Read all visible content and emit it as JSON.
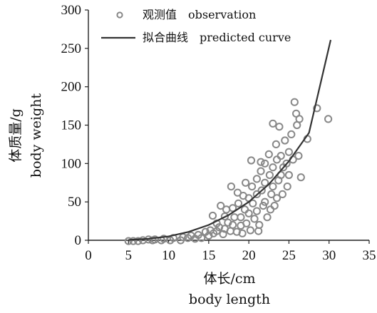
{
  "chart_data": {
    "type": "scatter",
    "xlabel": "体长/cm",
    "xlabel_en": "body length",
    "ylabel": "体质量/g",
    "ylabel_en": "body weight",
    "xlim": [
      0,
      35
    ],
    "ylim": [
      0,
      300
    ],
    "xticks": [
      0,
      5,
      10,
      15,
      20,
      25,
      30,
      35
    ],
    "yticks": [
      0,
      50,
      100,
      150,
      200,
      250,
      300
    ],
    "grid": false,
    "legend_position": "top-left",
    "series": [
      {
        "name": "观测值　observation",
        "kind": "scatter",
        "color": "#888888",
        "marker": "open-circle",
        "points": [
          [
            5.0,
            -1
          ],
          [
            5.6,
            -1
          ],
          [
            6.2,
            -1
          ],
          [
            6.8,
            0
          ],
          [
            7.5,
            1
          ],
          [
            8.0,
            0
          ],
          [
            8.3,
            1
          ],
          [
            9.1,
            0
          ],
          [
            9.4,
            2
          ],
          [
            10.2,
            0
          ],
          [
            10.6,
            3
          ],
          [
            11.5,
            0
          ],
          [
            11.8,
            4
          ],
          [
            12.4,
            3
          ],
          [
            12.8,
            6
          ],
          [
            13.3,
            2
          ],
          [
            13.7,
            7
          ],
          [
            14.1,
            3
          ],
          [
            14.6,
            11
          ],
          [
            15.0,
            6
          ],
          [
            15.2,
            13
          ],
          [
            15.6,
            9
          ],
          [
            16.0,
            22
          ],
          [
            16.0,
            12
          ],
          [
            16.3,
            17
          ],
          [
            16.8,
            8
          ],
          [
            17.0,
            31
          ],
          [
            17.0,
            15
          ],
          [
            17.4,
            23
          ],
          [
            17.7,
            12
          ],
          [
            18.0,
            42
          ],
          [
            18.0,
            20
          ],
          [
            18.2,
            30
          ],
          [
            18.5,
            11
          ],
          [
            18.7,
            48
          ],
          [
            19.0,
            30
          ],
          [
            19.0,
            19
          ],
          [
            19.3,
            58
          ],
          [
            19.5,
            40
          ],
          [
            19.7,
            22
          ],
          [
            20.0,
            55
          ],
          [
            20.0,
            35
          ],
          [
            20.2,
            13
          ],
          [
            20.4,
            70
          ],
          [
            20.5,
            48
          ],
          [
            20.7,
            28
          ],
          [
            21.0,
            80
          ],
          [
            21.0,
            60
          ],
          [
            21.0,
            38
          ],
          [
            21.3,
            20
          ],
          [
            21.5,
            90
          ],
          [
            21.6,
            65
          ],
          [
            21.8,
            45
          ],
          [
            22.0,
            100
          ],
          [
            22.0,
            75
          ],
          [
            22.0,
            50
          ],
          [
            22.3,
            30
          ],
          [
            22.5,
            112
          ],
          [
            22.6,
            85
          ],
          [
            22.8,
            60
          ],
          [
            23.0,
            95
          ],
          [
            23.0,
            70
          ],
          [
            23.2,
            45
          ],
          [
            23.4,
            125
          ],
          [
            23.5,
            105
          ],
          [
            23.7,
            78
          ],
          [
            24.0,
            110
          ],
          [
            24.0,
            85
          ],
          [
            24.2,
            60
          ],
          [
            24.5,
            130
          ],
          [
            24.7,
            100
          ],
          [
            25.0,
            115
          ],
          [
            25.0,
            85
          ],
          [
            25.3,
            138
          ],
          [
            25.5,
            105
          ],
          [
            25.7,
            180
          ],
          [
            25.9,
            165
          ],
          [
            26.0,
            150
          ],
          [
            26.2,
            110
          ],
          [
            26.5,
            82
          ],
          [
            26.3,
            158
          ],
          [
            27.3,
            132
          ],
          [
            28.5,
            172
          ],
          [
            29.9,
            158
          ],
          [
            23.0,
            152
          ],
          [
            23.8,
            148
          ],
          [
            24.3,
            95
          ],
          [
            21.5,
            102
          ],
          [
            20.3,
            104
          ],
          [
            19.6,
            75
          ],
          [
            18.6,
            62
          ],
          [
            17.8,
            70
          ],
          [
            16.5,
            45
          ],
          [
            15.5,
            32
          ],
          [
            22.7,
            40
          ],
          [
            23.5,
            55
          ],
          [
            24.8,
            70
          ],
          [
            19.2,
            9
          ],
          [
            21.2,
            12
          ],
          [
            17.2,
            40
          ]
        ]
      },
      {
        "name": "拟合曲线　predicted curve",
        "kind": "line",
        "color": "#333333",
        "x": [
          5,
          7.5,
          10,
          12.5,
          15,
          17.5,
          20,
          22.5,
          25,
          27.5,
          30.2
        ],
        "y": [
          0.5,
          2,
          5,
          11,
          20,
          33,
          50,
          73,
          103,
          140,
          261
        ]
      }
    ]
  }
}
